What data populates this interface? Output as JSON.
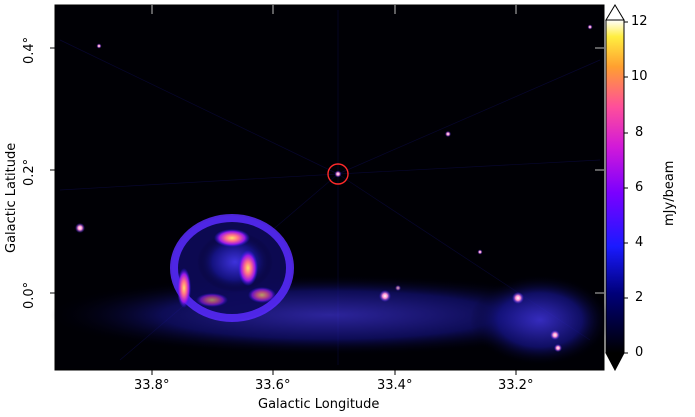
{
  "axes": {
    "xlabel": "Galactic Longitude",
    "ylabel": "Galactic Latitude",
    "x_ticks": [
      "33.8°",
      "33.6°",
      "33.4°",
      "33.2°"
    ],
    "y_ticks": [
      "0.4°",
      "0.2°",
      "0.0°"
    ]
  },
  "colorbar": {
    "label": "mJy/beam",
    "ticks": [
      "12",
      "10",
      "8",
      "6",
      "4",
      "2",
      "0"
    ],
    "colormap": "gnuplot2"
  },
  "colors": {
    "background": "#000005",
    "circle": "#ff2a2a"
  }
}
